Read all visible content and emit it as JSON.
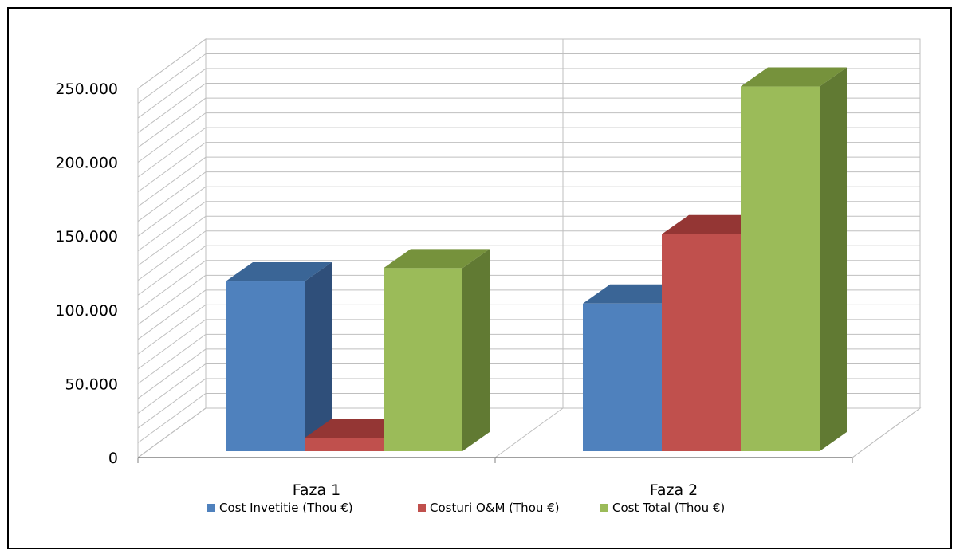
{
  "chart_data": {
    "type": "bar",
    "title": "",
    "xlabel": "",
    "ylabel": "",
    "categories": [
      "Faza 1",
      "Faza 2"
    ],
    "series": [
      {
        "name": "Cost Invetitie (Thou €)",
        "values": [
          115000,
          100000
        ],
        "color": "#4F81BD",
        "side_color": "#2F4F7A",
        "top_color": "#3A6596"
      },
      {
        "name": "Costuri O&M  (Thou €)",
        "values": [
          9000,
          147000
        ],
        "color": "#C0504D",
        "side_color": "#7B2E2C",
        "top_color": "#943634"
      },
      {
        "name": "Cost Total (Thou €)",
        "values": [
          124000,
          247000
        ],
        "color": "#9BBB59",
        "side_color": "#617A33",
        "top_color": "#76923C"
      }
    ],
    "ylim": [
      0,
      250000
    ],
    "y_ticks": [
      0,
      50000,
      100000,
      150000,
      200000,
      250000
    ],
    "y_tick_labels": [
      "0",
      "50.000",
      "100.000",
      "150.000",
      "200.000",
      "250.000"
    ],
    "grid": true,
    "legend_position": "bottom"
  }
}
